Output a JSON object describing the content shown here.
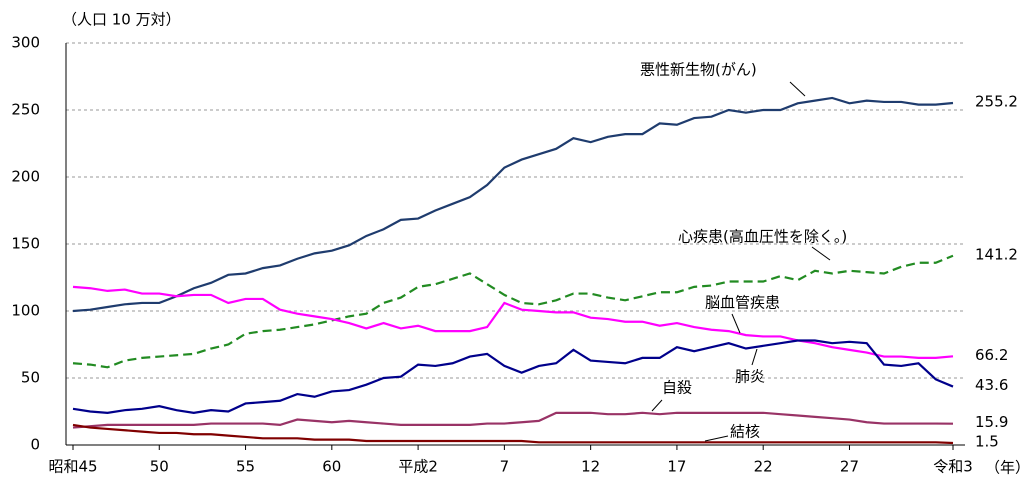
{
  "chart_data": {
    "type": "line",
    "y_label": "（人口 10 万対）",
    "x_label": "（年）",
    "categories": [
      "昭和45",
      null,
      null,
      null,
      null,
      "50",
      null,
      null,
      null,
      null,
      "55",
      null,
      null,
      null,
      null,
      "60",
      null,
      null,
      null,
      null,
      "平成2",
      null,
      null,
      null,
      null,
      "7",
      null,
      null,
      null,
      null,
      "12",
      null,
      null,
      null,
      null,
      "17",
      null,
      null,
      null,
      null,
      "22",
      null,
      null,
      null,
      null,
      "27",
      null,
      null,
      null,
      null,
      null,
      "令和3"
    ],
    "ylim": [
      0,
      300
    ],
    "yticks": [
      0,
      50,
      100,
      150,
      200,
      250,
      300
    ],
    "grid": true,
    "series": [
      {
        "name": "悪性新生物(がん)",
        "color": "#1f3c6e",
        "dashed": false,
        "values": [
          100,
          101,
          103,
          105,
          106,
          106,
          111,
          117,
          121,
          127,
          128,
          132,
          134,
          139,
          143,
          145,
          149,
          156,
          161,
          168,
          169,
          175,
          180,
          185,
          194,
          207,
          213,
          217,
          221,
          229,
          226,
          230,
          232,
          232,
          240,
          239,
          244,
          245,
          250,
          248,
          250,
          250,
          255,
          257,
          259,
          255,
          257,
          256,
          256,
          254,
          254,
          255.2
        ]
      },
      {
        "name": "心疾患(高血圧性を除く。)",
        "color": "#228b22",
        "dashed": true,
        "values": [
          61,
          60,
          58,
          63,
          65,
          66,
          67,
          68,
          72,
          75,
          83,
          85,
          86,
          88,
          90,
          93,
          96,
          98,
          106,
          110,
          118,
          120,
          124,
          128,
          120,
          112,
          106,
          105,
          108,
          113,
          113,
          110,
          108,
          111,
          114,
          114,
          118,
          119,
          122,
          122,
          122,
          126,
          123,
          130,
          128,
          130,
          129,
          128,
          133,
          136,
          136,
          141.2
        ]
      },
      {
        "name": "脳血管疾患",
        "color": "#ff00ff",
        "dashed": false,
        "values": [
          118,
          117,
          115,
          116,
          113,
          113,
          111,
          112,
          112,
          106,
          109,
          109,
          101,
          98,
          96,
          94,
          91,
          87,
          91,
          87,
          89,
          85,
          85,
          85,
          88,
          106,
          101,
          100,
          99,
          99,
          95,
          94,
          92,
          92,
          89,
          91,
          88,
          86,
          85,
          82,
          81,
          81,
          78,
          76,
          73,
          71,
          69,
          66,
          66,
          65,
          65,
          66.2
        ]
      },
      {
        "name": "肺炎",
        "color": "#00008b",
        "dashed": false,
        "values": [
          27,
          25,
          24,
          26,
          27,
          29,
          26,
          24,
          26,
          25,
          31,
          32,
          33,
          38,
          36,
          40,
          41,
          45,
          50,
          51,
          60,
          59,
          61,
          66,
          68,
          59,
          54,
          59,
          61,
          71,
          63,
          62,
          61,
          65,
          65,
          73,
          70,
          73,
          76,
          72,
          74,
          76,
          78,
          78,
          76,
          77,
          76,
          60,
          59,
          61,
          49,
          43.6
        ]
      },
      {
        "name": "自殺",
        "color": "#993366",
        "dashed": false,
        "values": [
          13,
          14,
          15,
          15,
          15,
          15,
          15,
          15,
          16,
          16,
          16,
          16,
          15,
          19,
          18,
          17,
          18,
          17,
          16,
          15,
          15,
          15,
          15,
          15,
          16,
          16,
          17,
          18,
          24,
          24,
          24,
          23,
          23,
          24,
          23,
          24,
          24,
          24,
          24,
          24,
          24,
          23,
          22,
          21,
          20,
          19,
          17,
          16,
          16,
          16,
          16,
          15.9
        ]
      },
      {
        "name": "結核",
        "color": "#800000",
        "dashed": false,
        "values": [
          15,
          13,
          12,
          11,
          10,
          9,
          9,
          8,
          8,
          7,
          6,
          5,
          5,
          5,
          4,
          4,
          4,
          3,
          3,
          3,
          3,
          3,
          3,
          3,
          3,
          3,
          3,
          2,
          2,
          2,
          2,
          2,
          2,
          2,
          2,
          2,
          2,
          2,
          2,
          2,
          2,
          2,
          2,
          2,
          2,
          2,
          2,
          2,
          2,
          2,
          2,
          1.5
        ]
      }
    ]
  }
}
